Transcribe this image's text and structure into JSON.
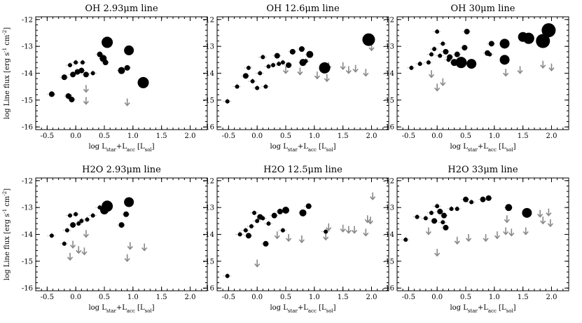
{
  "axes": {
    "xlabel": "log L_star+L_acc [L_sol]",
    "ylabel": "log Line flux [erg s^-1 cm^-2]",
    "xlim": [
      -0.7,
      2.3
    ],
    "ylim": [
      -16.1,
      -11.9
    ],
    "xticks": [
      "-0.5",
      "0.0",
      "0.5",
      "1.0",
      "1.5",
      "2.0"
    ],
    "yticks": [
      "-16",
      "-15",
      "-14",
      "-13",
      "-12"
    ]
  },
  "chart_data": [
    {
      "type": "scatter",
      "title": "OH 2.93μm line",
      "detections": [
        {
          "x": -0.42,
          "y": -14.78,
          "s": 4
        },
        {
          "x": -0.2,
          "y": -14.15,
          "s": 4
        },
        {
          "x": -0.13,
          "y": -14.85,
          "s": 4
        },
        {
          "x": -0.07,
          "y": -14.98,
          "s": 4
        },
        {
          "x": -0.1,
          "y": -13.7,
          "s": 3
        },
        {
          "x": -0.05,
          "y": -14.05,
          "s": 4
        },
        {
          "x": 0.0,
          "y": -13.6,
          "s": 3
        },
        {
          "x": 0.03,
          "y": -13.95,
          "s": 4
        },
        {
          "x": 0.1,
          "y": -13.9,
          "s": 4
        },
        {
          "x": 0.12,
          "y": -13.6,
          "s": 3
        },
        {
          "x": 0.18,
          "y": -14.05,
          "s": 4
        },
        {
          "x": 0.3,
          "y": -14.0,
          "s": 3
        },
        {
          "x": 0.42,
          "y": -13.3,
          "s": 4
        },
        {
          "x": 0.48,
          "y": -13.45,
          "s": 5
        },
        {
          "x": 0.52,
          "y": -13.6,
          "s": 4
        },
        {
          "x": 0.55,
          "y": -12.85,
          "s": 8
        },
        {
          "x": 0.8,
          "y": -13.9,
          "s": 5
        },
        {
          "x": 0.9,
          "y": -13.8,
          "s": 4
        },
        {
          "x": 0.93,
          "y": -13.15,
          "s": 7
        },
        {
          "x": 1.18,
          "y": -14.35,
          "s": 8
        }
      ],
      "upper_limits": [
        {
          "x": 0.18,
          "y": -14.7
        },
        {
          "x": 0.9,
          "y": -15.2
        },
        {
          "x": -0.08,
          "y": -15.05
        },
        {
          "x": 0.18,
          "y": -15.15
        }
      ]
    },
    {
      "type": "scatter",
      "title": "OH 12.6μm line",
      "detections": [
        {
          "x": -0.52,
          "y": -15.05,
          "s": 3
        },
        {
          "x": -0.35,
          "y": -14.5,
          "s": 3
        },
        {
          "x": -0.2,
          "y": -14.1,
          "s": 4
        },
        {
          "x": -0.15,
          "y": -13.8,
          "s": 3
        },
        {
          "x": -0.08,
          "y": -14.3,
          "s": 3
        },
        {
          "x": 0.0,
          "y": -14.55,
          "s": 3
        },
        {
          "x": 0.05,
          "y": -14.0,
          "s": 3
        },
        {
          "x": 0.1,
          "y": -13.4,
          "s": 3
        },
        {
          "x": 0.15,
          "y": -14.5,
          "s": 3
        },
        {
          "x": 0.2,
          "y": -13.75,
          "s": 3
        },
        {
          "x": 0.28,
          "y": -13.7,
          "s": 3
        },
        {
          "x": 0.35,
          "y": -13.35,
          "s": 4
        },
        {
          "x": 0.38,
          "y": -13.65,
          "s": 3
        },
        {
          "x": 0.45,
          "y": -13.6,
          "s": 3
        },
        {
          "x": 0.55,
          "y": -13.7,
          "s": 4
        },
        {
          "x": 0.62,
          "y": -13.2,
          "s": 4
        },
        {
          "x": 0.78,
          "y": -13.1,
          "s": 4
        },
        {
          "x": 0.8,
          "y": -13.6,
          "s": 5
        },
        {
          "x": 0.85,
          "y": -13.55,
          "s": 3
        },
        {
          "x": 0.92,
          "y": -13.3,
          "s": 5
        },
        {
          "x": 1.18,
          "y": -13.8,
          "s": 8
        },
        {
          "x": 1.95,
          "y": -12.75,
          "s": 9
        }
      ],
      "upper_limits": [
        {
          "x": 0.5,
          "y": -14.0
        },
        {
          "x": 0.75,
          "y": -14.05
        },
        {
          "x": 1.05,
          "y": -14.2
        },
        {
          "x": 1.25,
          "y": -13.85
        },
        {
          "x": 1.22,
          "y": -14.3
        },
        {
          "x": 1.5,
          "y": -13.85
        },
        {
          "x": 1.6,
          "y": -14.0
        },
        {
          "x": 1.72,
          "y": -13.95
        },
        {
          "x": 1.9,
          "y": -14.1
        },
        {
          "x": 2.0,
          "y": -13.15
        }
      ]
    },
    {
      "type": "scatter",
      "title": "OH 30μm line",
      "detections": [
        {
          "x": -0.45,
          "y": -13.8,
          "s": 3
        },
        {
          "x": -0.3,
          "y": -13.65,
          "s": 3
        },
        {
          "x": -0.15,
          "y": -13.6,
          "s": 3
        },
        {
          "x": -0.1,
          "y": -13.3,
          "s": 3
        },
        {
          "x": -0.05,
          "y": -13.1,
          "s": 3
        },
        {
          "x": 0.0,
          "y": -12.45,
          "s": 3
        },
        {
          "x": 0.05,
          "y": -13.35,
          "s": 3
        },
        {
          "x": 0.1,
          "y": -12.9,
          "s": 3
        },
        {
          "x": 0.15,
          "y": -13.2,
          "s": 4
        },
        {
          "x": 0.2,
          "y": -13.5,
          "s": 3
        },
        {
          "x": 0.22,
          "y": -13.4,
          "s": 4
        },
        {
          "x": 0.3,
          "y": -13.6,
          "s": 5
        },
        {
          "x": 0.35,
          "y": -13.3,
          "s": 4
        },
        {
          "x": 0.42,
          "y": -13.6,
          "s": 8
        },
        {
          "x": 0.48,
          "y": -13.05,
          "s": 4
        },
        {
          "x": 0.52,
          "y": -12.45,
          "s": 4
        },
        {
          "x": 0.6,
          "y": -13.65,
          "s": 7
        },
        {
          "x": 0.88,
          "y": -13.25,
          "s": 4
        },
        {
          "x": 0.92,
          "y": -13.3,
          "s": 3
        },
        {
          "x": 0.95,
          "y": -12.9,
          "s": 4
        },
        {
          "x": 1.18,
          "y": -12.9,
          "s": 7
        },
        {
          "x": 1.18,
          "y": -13.5,
          "s": 7
        },
        {
          "x": 1.5,
          "y": -12.65,
          "s": 7
        },
        {
          "x": 1.6,
          "y": -12.7,
          "s": 8
        },
        {
          "x": 1.85,
          "y": -12.8,
          "s": 10
        },
        {
          "x": 1.95,
          "y": -12.4,
          "s": 10
        }
      ],
      "upper_limits": [
        {
          "x": -0.1,
          "y": -14.15
        },
        {
          "x": 0.1,
          "y": -14.45
        },
        {
          "x": 1.2,
          "y": -14.1
        },
        {
          "x": 1.45,
          "y": -14.0
        },
        {
          "x": 1.85,
          "y": -13.8
        },
        {
          "x": 2.0,
          "y": -13.9
        },
        {
          "x": 0.0,
          "y": -14.65
        }
      ]
    },
    {
      "type": "scatter",
      "title": "H2O 2.93μm line",
      "detections": [
        {
          "x": -0.42,
          "y": -14.05,
          "s": 3
        },
        {
          "x": -0.2,
          "y": -14.35,
          "s": 3
        },
        {
          "x": -0.15,
          "y": -13.85,
          "s": 3
        },
        {
          "x": -0.1,
          "y": -13.3,
          "s": 3
        },
        {
          "x": -0.05,
          "y": -13.65,
          "s": 4
        },
        {
          "x": 0.0,
          "y": -13.25,
          "s": 3
        },
        {
          "x": 0.05,
          "y": -13.6,
          "s": 3
        },
        {
          "x": 0.1,
          "y": -13.5,
          "s": 3
        },
        {
          "x": 0.2,
          "y": -13.45,
          "s": 3
        },
        {
          "x": 0.3,
          "y": -13.3,
          "s": 3
        },
        {
          "x": 0.42,
          "y": -13.0,
          "s": 3
        },
        {
          "x": 0.5,
          "y": -13.1,
          "s": 6
        },
        {
          "x": 0.55,
          "y": -12.95,
          "s": 8
        },
        {
          "x": 0.8,
          "y": -13.65,
          "s": 4
        },
        {
          "x": 0.88,
          "y": -13.25,
          "s": 4
        },
        {
          "x": 0.93,
          "y": -12.8,
          "s": 7
        }
      ],
      "upper_limits": [
        {
          "x": -0.05,
          "y": -14.5
        },
        {
          "x": -0.1,
          "y": -14.95
        },
        {
          "x": 0.05,
          "y": -14.7
        },
        {
          "x": 0.15,
          "y": -14.75
        },
        {
          "x": 0.18,
          "y": -14.1
        },
        {
          "x": 0.9,
          "y": -15.0
        },
        {
          "x": 0.95,
          "y": -14.55
        },
        {
          "x": 1.2,
          "y": -14.6
        }
      ]
    },
    {
      "type": "scatter",
      "title": "H2O 12.5μm line",
      "detections": [
        {
          "x": -0.52,
          "y": -15.55,
          "s": 3
        },
        {
          "x": -0.3,
          "y": -14.0,
          "s": 3
        },
        {
          "x": -0.2,
          "y": -13.85,
          "s": 3
        },
        {
          "x": -0.15,
          "y": -14.05,
          "s": 4
        },
        {
          "x": -0.1,
          "y": -13.7,
          "s": 3
        },
        {
          "x": -0.05,
          "y": -13.2,
          "s": 3
        },
        {
          "x": 0.0,
          "y": -13.5,
          "s": 3
        },
        {
          "x": 0.05,
          "y": -13.35,
          "s": 4
        },
        {
          "x": 0.1,
          "y": -13.4,
          "s": 3
        },
        {
          "x": 0.15,
          "y": -14.35,
          "s": 4
        },
        {
          "x": 0.2,
          "y": -13.6,
          "s": 3
        },
        {
          "x": 0.3,
          "y": -13.3,
          "s": 4
        },
        {
          "x": 0.4,
          "y": -13.15,
          "s": 4
        },
        {
          "x": 0.45,
          "y": -13.85,
          "s": 3
        },
        {
          "x": 0.5,
          "y": -13.1,
          "s": 5
        },
        {
          "x": 0.8,
          "y": -13.2,
          "s": 5
        },
        {
          "x": 0.9,
          "y": -12.95,
          "s": 4
        },
        {
          "x": 1.2,
          "y": -13.9,
          "s": 3
        }
      ],
      "upper_limits": [
        {
          "x": 0.35,
          "y": -14.15
        },
        {
          "x": 0.55,
          "y": -14.25
        },
        {
          "x": 0.78,
          "y": -14.3
        },
        {
          "x": 1.2,
          "y": -14.2
        },
        {
          "x": 1.25,
          "y": -13.85
        },
        {
          "x": 1.5,
          "y": -13.9
        },
        {
          "x": 1.6,
          "y": -13.95
        },
        {
          "x": 1.7,
          "y": -13.95
        },
        {
          "x": 1.9,
          "y": -14.05
        },
        {
          "x": 1.93,
          "y": -13.55
        },
        {
          "x": 1.98,
          "y": -13.6
        },
        {
          "x": 2.02,
          "y": -12.7
        },
        {
          "x": 0.0,
          "y": -15.2
        }
      ]
    },
    {
      "type": "scatter",
      "title": "H2O 33μm line",
      "detections": [
        {
          "x": -0.55,
          "y": -14.2,
          "s": 3
        },
        {
          "x": -0.35,
          "y": -13.35,
          "s": 3
        },
        {
          "x": -0.2,
          "y": -13.4,
          "s": 3
        },
        {
          "x": -0.1,
          "y": -13.2,
          "s": 3
        },
        {
          "x": -0.05,
          "y": -13.5,
          "s": 4
        },
        {
          "x": 0.0,
          "y": -12.95,
          "s": 3
        },
        {
          "x": 0.05,
          "y": -13.15,
          "s": 4
        },
        {
          "x": 0.1,
          "y": -13.55,
          "s": 3
        },
        {
          "x": 0.12,
          "y": -13.3,
          "s": 4
        },
        {
          "x": 0.15,
          "y": -13.75,
          "s": 4
        },
        {
          "x": 0.25,
          "y": -13.05,
          "s": 3
        },
        {
          "x": 0.35,
          "y": -13.05,
          "s": 3
        },
        {
          "x": 0.5,
          "y": -12.7,
          "s": 4
        },
        {
          "x": 0.6,
          "y": -12.8,
          "s": 3
        },
        {
          "x": 0.8,
          "y": -12.7,
          "s": 4
        },
        {
          "x": 0.9,
          "y": -12.65,
          "s": 4
        },
        {
          "x": 1.25,
          "y": -13.0,
          "s": 5
        },
        {
          "x": 1.57,
          "y": -13.2,
          "s": 7
        }
      ],
      "upper_limits": [
        {
          "x": -0.15,
          "y": -14.0
        },
        {
          "x": 0.35,
          "y": -14.35
        },
        {
          "x": 0.55,
          "y": -14.25
        },
        {
          "x": 0.85,
          "y": -14.25
        },
        {
          "x": 1.05,
          "y": -14.15
        },
        {
          "x": 1.2,
          "y": -14.0
        },
        {
          "x": 1.22,
          "y": -13.55
        },
        {
          "x": 1.3,
          "y": -14.05
        },
        {
          "x": 1.55,
          "y": -14.0
        },
        {
          "x": 1.8,
          "y": -13.35
        },
        {
          "x": 1.85,
          "y": -13.6
        },
        {
          "x": 1.95,
          "y": -13.3
        },
        {
          "x": 1.98,
          "y": -13.7
        },
        {
          "x": 0.0,
          "y": -14.8
        }
      ]
    }
  ]
}
